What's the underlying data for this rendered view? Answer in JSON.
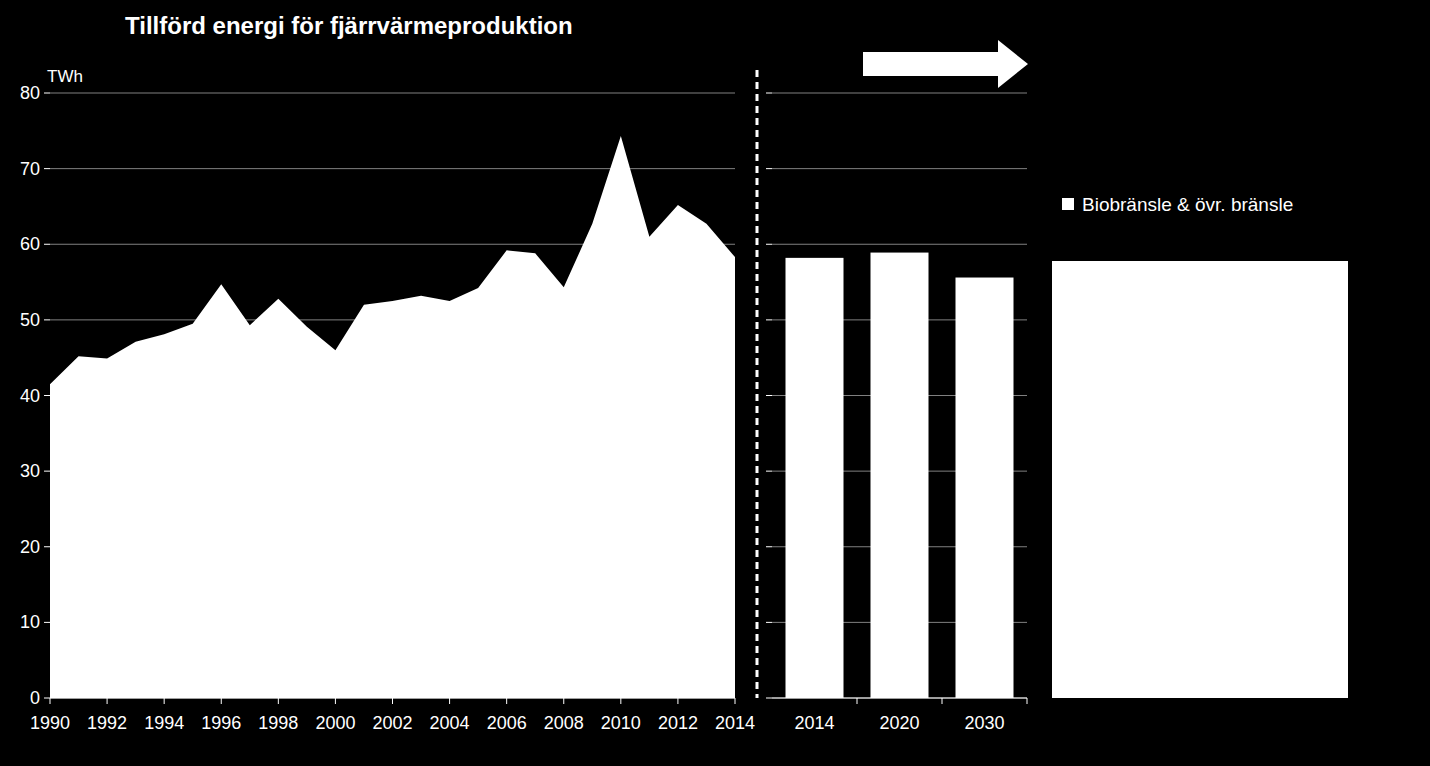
{
  "chart_data": [
    {
      "type": "area",
      "title": "Tillförd energi för fjärrvärmeproduktion",
      "y_label": "TWh",
      "x": [
        1990,
        1991,
        1992,
        1993,
        1994,
        1995,
        1996,
        1997,
        1998,
        1999,
        2000,
        2001,
        2002,
        2003,
        2004,
        2005,
        2006,
        2007,
        2008,
        2009,
        2010,
        2011,
        2012,
        2013,
        2014
      ],
      "values": [
        41.5,
        45.2,
        44.9,
        47.1,
        48.1,
        49.5,
        54.7,
        49.3,
        52.8,
        49.1,
        46.0,
        52.0,
        52.5,
        53.2,
        52.5,
        54.2,
        59.2,
        58.8,
        54.3,
        62.7,
        74.3,
        61.0,
        65.2,
        62.7,
        58.3
      ],
      "color": "#ffffff",
      "xlim": [
        1990,
        2014
      ],
      "xticks": [
        1990,
        1992,
        1994,
        1996,
        1998,
        2000,
        2002,
        2004,
        2006,
        2008,
        2010,
        2012,
        2014
      ],
      "ylim": [
        0,
        80
      ],
      "yticks": [
        0,
        10,
        20,
        30,
        40,
        50,
        60,
        70,
        80
      ],
      "grid": true
    },
    {
      "type": "bar",
      "categories": [
        "2014",
        "2020",
        "2030"
      ],
      "series": [
        {
          "name": "Biobränsle & övr. bränsle",
          "color": "#ffffff",
          "values": [
            58.2,
            58.9,
            55.6
          ]
        }
      ],
      "ylim": [
        0,
        80
      ],
      "yticks": [
        0,
        10,
        20,
        30,
        40,
        50,
        60,
        70,
        80
      ],
      "grid": true,
      "tick_labels": "x",
      "legend": "right"
    }
  ]
}
